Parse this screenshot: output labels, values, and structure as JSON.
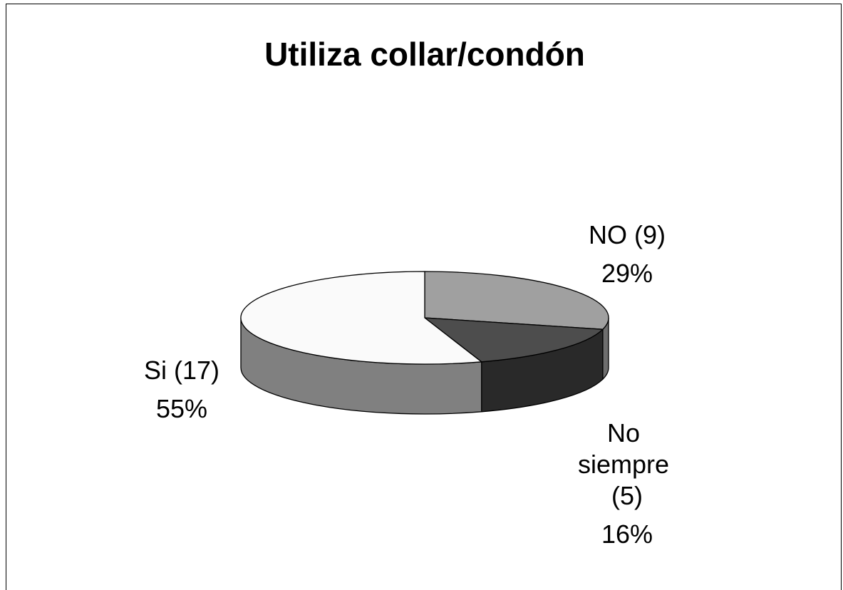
{
  "chart_data": {
    "type": "pie3d",
    "title": "Utiliza collar/condón",
    "categories": [
      "NO (9)",
      "No siempre (5)",
      "Si (17)"
    ],
    "values": [
      29,
      16,
      55
    ],
    "value_labels": [
      "29%",
      "16%",
      "55%"
    ],
    "colors": [
      "#a0a0a0",
      "#4d4d4d",
      "#fafafa"
    ],
    "side_colors": [
      "#6e6e6e",
      "#292929",
      "#808080"
    ]
  }
}
